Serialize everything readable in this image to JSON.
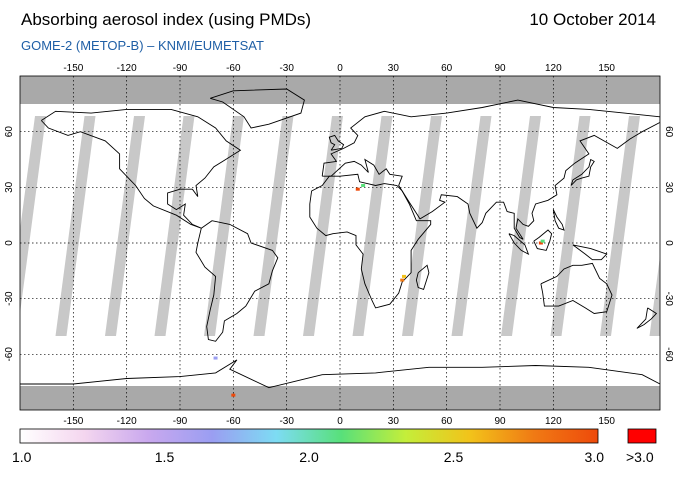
{
  "header": {
    "title": "Absorbing aerosol index (using PMDs)",
    "date": "10 October 2014",
    "subtitle": "GOME-2 (METOP-B)  –  KNMI/EUMETSAT"
  },
  "map": {
    "projection": "equirectangular",
    "lon_ticks": [
      "-150",
      "-120",
      "-90",
      "-60",
      "-30",
      "0",
      "30",
      "60",
      "90",
      "120",
      "150"
    ],
    "lat_ticks": [
      "60",
      "30",
      "0",
      "-30",
      "-60"
    ],
    "colors": {
      "land_outline": "#000000",
      "polar_cap": "#a9a9a9",
      "swath_gap": "#c8c8c8",
      "grid": "#000000"
    }
  },
  "colorbar": {
    "labels": [
      "1.0",
      "1.5",
      "2.0",
      "2.5",
      "3.0"
    ],
    "overflow_label": ">3.0",
    "overflow_color": "#ff0000",
    "colors": [
      "#ffffff",
      "#f4d6ef",
      "#c9a8ee",
      "#9a9ef2",
      "#7ddcf3",
      "#58e07a",
      "#c4ee3a",
      "#f2c31a",
      "#f07a14",
      "#ee4a0b"
    ]
  }
}
